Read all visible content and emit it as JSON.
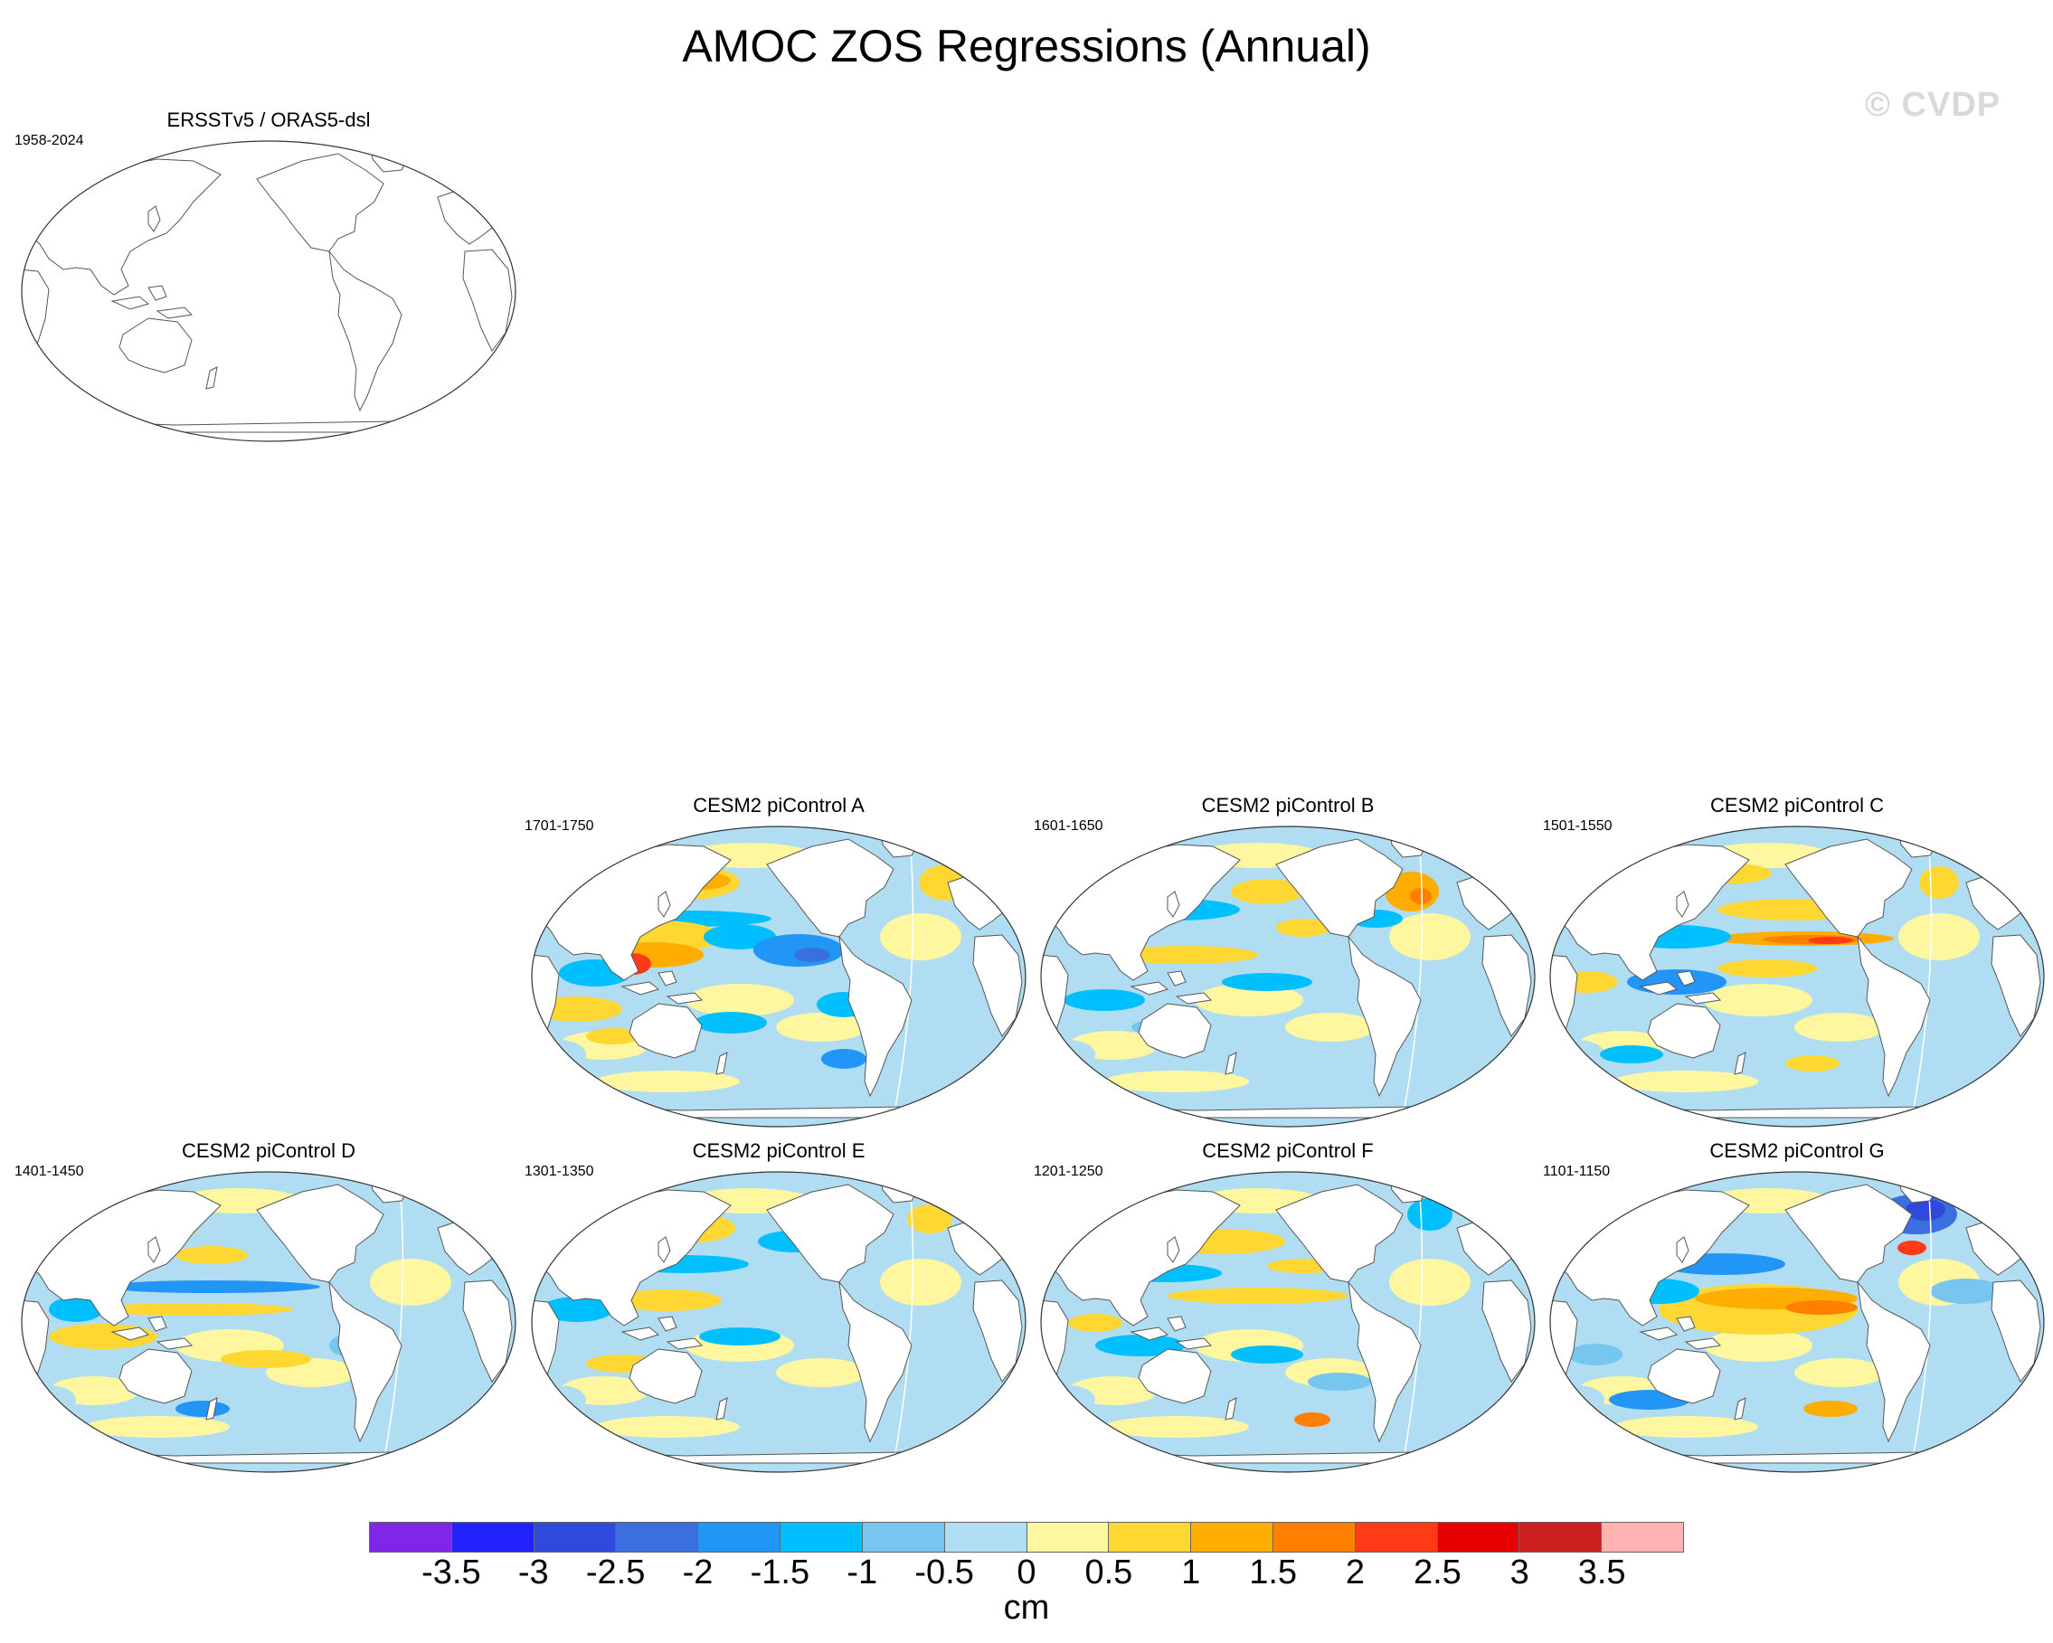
{
  "title": "AMOC ZOS Regressions (Annual)",
  "watermark": "© CVDP",
  "colorbar": {
    "labels": [
      "-3.5",
      "-3",
      "-2.5",
      "-2",
      "-1.5",
      "-1",
      "-0.5",
      "0",
      "0.5",
      "1",
      "1.5",
      "2",
      "2.5",
      "3",
      "3.5"
    ],
    "units": "cm",
    "colors": [
      "#8125e6",
      "#2222ff",
      "#3049dd",
      "#3b6fe0",
      "#2196f6",
      "#00bfff",
      "#76c6ef",
      "#b0ddf2",
      "#fff7a0",
      "#ffd733",
      "#ffad00",
      "#ff7f00",
      "#ff3a16",
      "#e60000",
      "#cc2020",
      "#ffb3b3"
    ]
  },
  "panels": [
    {
      "id": "obs",
      "title": "ERSSTv5 / ORAS5-dsl",
      "years": "1958-2024",
      "filled": false,
      "pattern": "empty"
    },
    {
      "id": "A",
      "title": "CESM2 piControl A",
      "years": "1701-1750",
      "filled": true,
      "pattern": "A"
    },
    {
      "id": "B",
      "title": "CESM2 piControl B",
      "years": "1601-1650",
      "filled": true,
      "pattern": "B"
    },
    {
      "id": "C",
      "title": "CESM2 piControl C",
      "years": "1501-1550",
      "filled": true,
      "pattern": "C"
    },
    {
      "id": "D",
      "title": "CESM2 piControl D",
      "years": "1401-1450",
      "filled": true,
      "pattern": "D"
    },
    {
      "id": "E",
      "title": "CESM2 piControl E",
      "years": "1301-1350",
      "filled": true,
      "pattern": "E"
    },
    {
      "id": "F",
      "title": "CESM2 piControl F",
      "years": "1201-1250",
      "filled": true,
      "pattern": "F"
    },
    {
      "id": "G",
      "title": "CESM2 piControl G",
      "years": "1101-1150",
      "filled": true,
      "pattern": "G"
    }
  ]
}
